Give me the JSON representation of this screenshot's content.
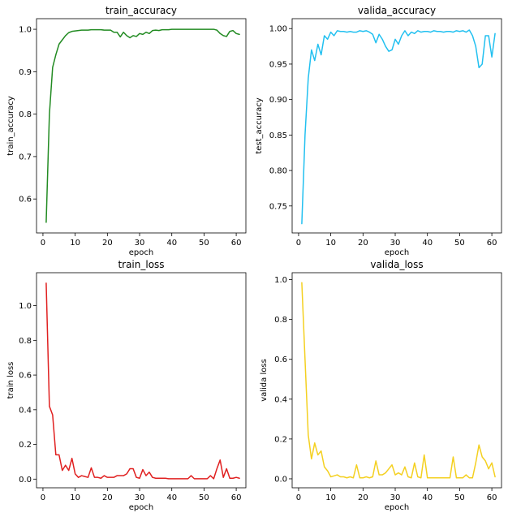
{
  "chart_data": [
    {
      "id": "train_accuracy",
      "type": "line",
      "title": "train_accuracy",
      "xlabel": "epoch",
      "ylabel": "train_accuracy",
      "xlim": [
        -2,
        63
      ],
      "ylim": [
        0.52,
        1.025
      ],
      "xticks": [
        0,
        10,
        20,
        30,
        40,
        50,
        60
      ],
      "yticks": [
        0.6,
        0.7,
        0.8,
        0.9,
        1.0
      ],
      "ytick_labels": [
        "0.6",
        "0.7",
        "0.8",
        "0.9",
        "1.0"
      ],
      "grid": false,
      "color": "#228B22",
      "x": [
        1,
        2,
        3,
        4,
        5,
        6,
        7,
        8,
        9,
        10,
        11,
        12,
        13,
        14,
        15,
        16,
        17,
        18,
        19,
        20,
        21,
        22,
        23,
        24,
        25,
        26,
        27,
        28,
        29,
        30,
        31,
        32,
        33,
        34,
        35,
        36,
        37,
        38,
        39,
        40,
        41,
        42,
        43,
        44,
        45,
        46,
        47,
        48,
        49,
        50,
        51,
        52,
        53,
        54,
        55,
        56,
        57,
        58,
        59,
        60,
        61
      ],
      "y": [
        0.545,
        0.8,
        0.91,
        0.94,
        0.965,
        0.975,
        0.985,
        0.992,
        0.995,
        0.996,
        0.997,
        0.998,
        0.998,
        0.998,
        0.999,
        0.999,
        0.999,
        0.999,
        0.998,
        0.998,
        0.998,
        0.993,
        0.993,
        0.982,
        0.993,
        0.985,
        0.98,
        0.985,
        0.983,
        0.99,
        0.988,
        0.993,
        0.99,
        0.997,
        0.998,
        0.997,
        0.999,
        0.999,
        0.999,
        1.0,
        1.0,
        1.0,
        1.0,
        1.0,
        1.0,
        1.0,
        1.0,
        1.0,
        1.0,
        1.0,
        1.0,
        1.0,
        1.0,
        0.998,
        0.99,
        0.985,
        0.983,
        0.995,
        0.997,
        0.99,
        0.988
      ]
    },
    {
      "id": "valida_accuracy",
      "type": "line",
      "title": "valida_accuracy",
      "xlabel": "epoch",
      "ylabel": "test_accuracy",
      "xlim": [
        -2,
        63
      ],
      "ylim": [
        0.712,
        1.014
      ],
      "xticks": [
        0,
        10,
        20,
        30,
        40,
        50,
        60
      ],
      "yticks": [
        0.75,
        0.8,
        0.85,
        0.9,
        0.95,
        1.0
      ],
      "ytick_labels": [
        "0.75",
        "0.80",
        "0.85",
        "0.90",
        "0.95",
        "1.00"
      ],
      "grid": false,
      "color": "#22C0F0",
      "x": [
        1,
        2,
        3,
        4,
        5,
        6,
        7,
        8,
        9,
        10,
        11,
        12,
        13,
        14,
        15,
        16,
        17,
        18,
        19,
        20,
        21,
        22,
        23,
        24,
        25,
        26,
        27,
        28,
        29,
        30,
        31,
        32,
        33,
        34,
        35,
        36,
        37,
        38,
        39,
        40,
        41,
        42,
        43,
        44,
        45,
        46,
        47,
        48,
        49,
        50,
        51,
        52,
        53,
        54,
        55,
        56,
        57,
        58,
        59,
        60,
        61
      ],
      "y": [
        0.725,
        0.85,
        0.93,
        0.97,
        0.955,
        0.978,
        0.963,
        0.99,
        0.985,
        0.995,
        0.99,
        0.997,
        0.996,
        0.996,
        0.995,
        0.996,
        0.995,
        0.995,
        0.997,
        0.996,
        0.997,
        0.995,
        0.992,
        0.98,
        0.992,
        0.985,
        0.975,
        0.968,
        0.97,
        0.985,
        0.978,
        0.99,
        0.997,
        0.99,
        0.995,
        0.993,
        0.997,
        0.995,
        0.996,
        0.996,
        0.995,
        0.997,
        0.996,
        0.996,
        0.995,
        0.996,
        0.996,
        0.995,
        0.997,
        0.996,
        0.997,
        0.995,
        0.998,
        0.99,
        0.975,
        0.945,
        0.95,
        0.99,
        0.99,
        0.96,
        0.993
      ]
    },
    {
      "id": "train_loss",
      "type": "line",
      "title": "train_loss",
      "xlabel": "epoch",
      "ylabel": "train loss",
      "xlim": [
        -2,
        63
      ],
      "ylim": [
        -0.05,
        1.19
      ],
      "xticks": [
        0,
        10,
        20,
        30,
        40,
        50,
        60
      ],
      "yticks": [
        0.0,
        0.2,
        0.4,
        0.6,
        0.8,
        1.0
      ],
      "ytick_labels": [
        "0.0",
        "0.2",
        "0.4",
        "0.6",
        "0.8",
        "1.0"
      ],
      "grid": false,
      "color": "#E02020",
      "x": [
        1,
        2,
        3,
        4,
        5,
        6,
        7,
        8,
        9,
        10,
        11,
        12,
        13,
        14,
        15,
        16,
        17,
        18,
        19,
        20,
        21,
        22,
        23,
        24,
        25,
        26,
        27,
        28,
        29,
        30,
        31,
        32,
        33,
        34,
        35,
        36,
        37,
        38,
        39,
        40,
        41,
        42,
        43,
        44,
        45,
        46,
        47,
        48,
        49,
        50,
        51,
        52,
        53,
        54,
        55,
        56,
        57,
        58,
        59,
        60,
        61
      ],
      "y": [
        1.13,
        0.42,
        0.37,
        0.14,
        0.14,
        0.05,
        0.08,
        0.05,
        0.12,
        0.03,
        0.01,
        0.02,
        0.015,
        0.01,
        0.065,
        0.01,
        0.01,
        0.005,
        0.02,
        0.01,
        0.01,
        0.01,
        0.02,
        0.02,
        0.02,
        0.03,
        0.06,
        0.06,
        0.01,
        0.005,
        0.055,
        0.02,
        0.04,
        0.01,
        0.005,
        0.005,
        0.005,
        0.005,
        0.002,
        0.002,
        0.002,
        0.002,
        0.002,
        0.002,
        0.002,
        0.02,
        0.002,
        0.002,
        0.002,
        0.002,
        0.002,
        0.02,
        0.002,
        0.06,
        0.11,
        0.01,
        0.06,
        0.005,
        0.005,
        0.01,
        0.005
      ]
    },
    {
      "id": "valida_loss",
      "type": "line",
      "title": "valida_loss",
      "xlabel": "epoch",
      "ylabel": "valida loss",
      "xlim": [
        -2,
        63
      ],
      "ylim": [
        -0.045,
        1.035
      ],
      "xticks": [
        0,
        10,
        20,
        30,
        40,
        50,
        60
      ],
      "yticks": [
        0.0,
        0.2,
        0.4,
        0.6,
        0.8,
        1.0
      ],
      "ytick_labels": [
        "0.0",
        "0.2",
        "0.4",
        "0.6",
        "0.8",
        "1.0"
      ],
      "grid": false,
      "color": "#F4D020",
      "x": [
        1,
        2,
        3,
        4,
        5,
        6,
        7,
        8,
        9,
        10,
        11,
        12,
        13,
        14,
        15,
        16,
        17,
        18,
        19,
        20,
        21,
        22,
        23,
        24,
        25,
        26,
        27,
        28,
        29,
        30,
        31,
        32,
        33,
        34,
        35,
        36,
        37,
        38,
        39,
        40,
        41,
        42,
        43,
        44,
        45,
        46,
        47,
        48,
        49,
        50,
        51,
        52,
        53,
        54,
        55,
        56,
        57,
        58,
        59,
        60,
        61
      ],
      "y": [
        0.985,
        0.6,
        0.22,
        0.1,
        0.18,
        0.12,
        0.14,
        0.06,
        0.04,
        0.01,
        0.015,
        0.02,
        0.01,
        0.01,
        0.005,
        0.01,
        0.005,
        0.07,
        0.005,
        0.005,
        0.01,
        0.005,
        0.01,
        0.09,
        0.02,
        0.02,
        0.03,
        0.05,
        0.07,
        0.02,
        0.03,
        0.02,
        0.06,
        0.01,
        0.005,
        0.08,
        0.01,
        0.005,
        0.12,
        0.005,
        0.005,
        0.005,
        0.005,
        0.005,
        0.005,
        0.005,
        0.005,
        0.11,
        0.005,
        0.005,
        0.005,
        0.02,
        0.005,
        0.005,
        0.08,
        0.17,
        0.11,
        0.09,
        0.05,
        0.08,
        0.01
      ]
    }
  ]
}
